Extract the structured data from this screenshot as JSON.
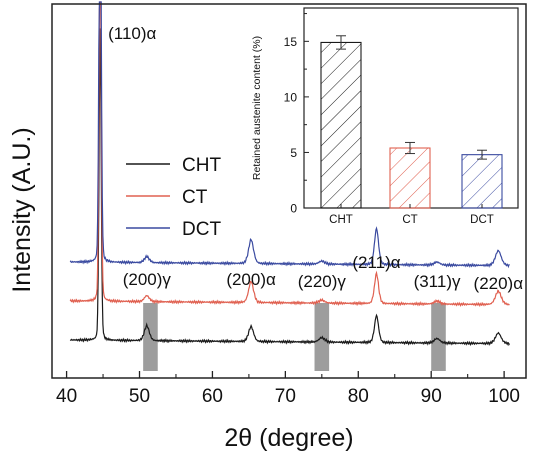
{
  "chart_data": [
    {
      "type": "line",
      "xlabel": "2θ (degree)",
      "ylabel": "Intensity (A.U.)",
      "xlim": [
        38,
        103
      ],
      "xticks": [
        "40",
        "50",
        "60",
        "70",
        "80",
        "90",
        "100"
      ],
      "xtick_values": [
        40,
        50,
        60,
        70,
        80,
        90,
        100
      ],
      "y_ticks_shown": false,
      "legend": {
        "placement": "center-left, upper"
      },
      "series": [
        {
          "name": "CHT",
          "color": "#1a1a1a",
          "offset": 0.0,
          "x": [
            40.5,
            44.6,
            51.0,
            65.3,
            75.0,
            82.5,
            90.8,
            99.2,
            100.5
          ],
          "y": [
            0.03,
            1.05,
            0.05,
            0.05,
            0.015,
            0.09,
            0.015,
            0.035,
            0.02
          ]
        },
        {
          "name": "CT",
          "color": "#e06050",
          "offset": 0.13,
          "x": [
            40.5,
            44.6,
            51.0,
            65.3,
            75.0,
            82.5,
            90.8,
            99.2,
            100.5
          ],
          "y": [
            0.03,
            1.3,
            0.02,
            0.07,
            0.01,
            0.1,
            0.01,
            0.045,
            0.02
          ]
        },
        {
          "name": "DCT",
          "color": "#3a4aa0",
          "offset": 0.26,
          "x": [
            40.5,
            44.6,
            51.0,
            65.3,
            75.0,
            82.5,
            90.8,
            99.2,
            100.5
          ],
          "y": [
            0.03,
            1.6,
            0.02,
            0.08,
            0.01,
            0.12,
            0.01,
            0.05,
            0.02
          ]
        }
      ],
      "peak_labels": [
        {
          "text": "(110)α",
          "x": 44.6
        },
        {
          "text": "(200)γ",
          "x": 51.0
        },
        {
          "text": "(200)α",
          "x": 65.3
        },
        {
          "text": "(220)γ",
          "x": 75.0
        },
        {
          "text": "(211)α",
          "x": 82.5
        },
        {
          "text": "(311)γ",
          "x": 90.8
        },
        {
          "text": "(220)α",
          "x": 99.2
        }
      ],
      "shaded_ranges": [
        [
          50.5,
          52.5
        ],
        [
          74.0,
          76.0
        ],
        [
          90.0,
          92.0
        ]
      ]
    },
    {
      "type": "bar",
      "ylabel": "Retained austenite content (%)",
      "ylim": [
        0,
        18
      ],
      "yticks": [
        "0",
        "5",
        "10",
        "15"
      ],
      "ytick_values": [
        0,
        5,
        10,
        15
      ],
      "categories": [
        "CHT",
        "CT",
        "DCT"
      ],
      "values": [
        14.9,
        5.4,
        4.8
      ],
      "errors": [
        0.6,
        0.5,
        0.4
      ],
      "bar_colors": [
        "#1a1a1a",
        "#e06050",
        "#3a4aa0"
      ],
      "pattern": "diagonal hatch"
    }
  ]
}
